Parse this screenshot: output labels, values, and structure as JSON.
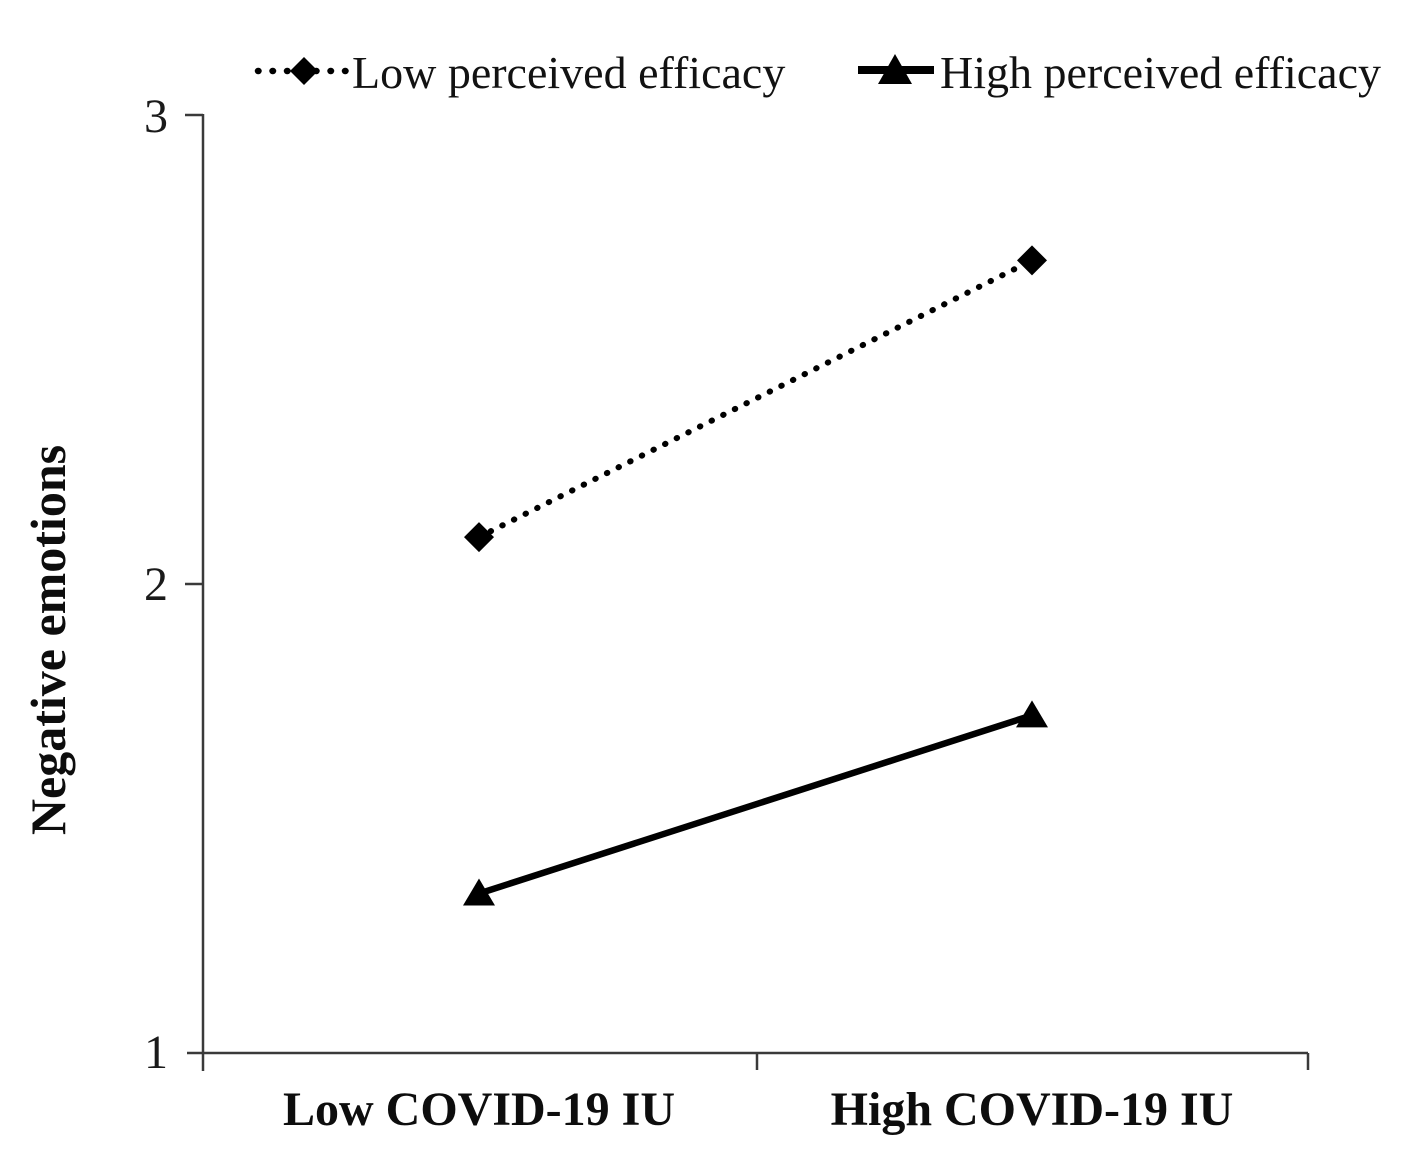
{
  "chart_data": {
    "type": "line",
    "title": "",
    "xlabel": "",
    "ylabel": "Negative emotions",
    "categories": [
      "Low COVID-19 IU",
      "High COVID-19 IU"
    ],
    "series": [
      {
        "name": "Low perceived efficacy",
        "values": [
          2.1,
          2.69
        ],
        "line_style": "dotted",
        "marker": "diamond",
        "color": "#000000"
      },
      {
        "name": "High perceived efficacy",
        "values": [
          1.34,
          1.72
        ],
        "line_style": "solid",
        "marker": "triangle",
        "color": "#000000"
      }
    ],
    "ylim": [
      1,
      3
    ],
    "yticks": [
      1,
      2,
      3
    ],
    "grid": false,
    "legend_position": "top",
    "axis_color": "#3a3a3a",
    "text_color": "#121212"
  }
}
